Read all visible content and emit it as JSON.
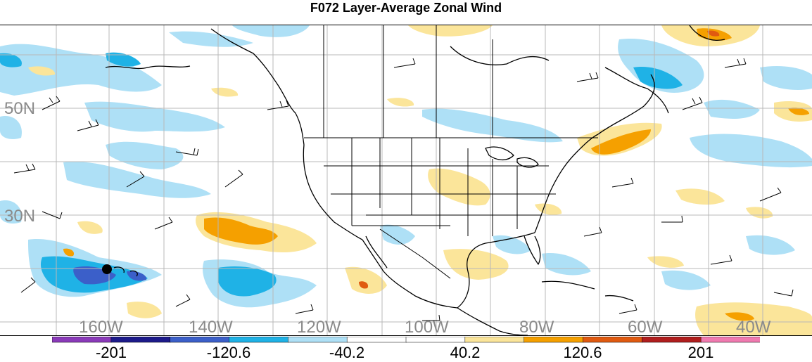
{
  "title": "F072 Layer-Average Zonal Wind",
  "lat_labels": [
    "50N",
    "30N"
  ],
  "lon_labels": [
    "160W",
    "140W",
    "120W",
    "100W",
    "80W",
    "60W",
    "40W"
  ],
  "colorbar": {
    "colors": [
      "#8a3ab9",
      "#1c1a8a",
      "#3b5fc9",
      "#1fb2e6",
      "#aee0f6",
      "#ffffff",
      "#ffffff",
      "#fbe59a",
      "#f5a000",
      "#e05a10",
      "#b01e1e",
      "#f07ab0"
    ],
    "labels": [
      "-201",
      "-120.6",
      "-40.2",
      "40.2",
      "120.6",
      "201"
    ]
  },
  "shading_colors": {
    "light_blue": "#aee0f6",
    "blue": "#1fb2e6",
    "dark_blue": "#3b5fc9",
    "light_yellow": "#fbe59a",
    "orange": "#f5a000",
    "red_orange": "#e05a10"
  }
}
